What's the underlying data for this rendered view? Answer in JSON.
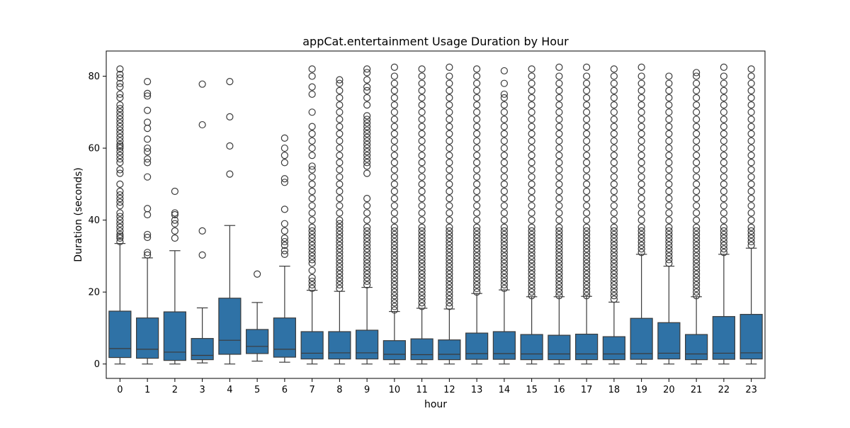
{
  "chart_data": {
    "type": "box",
    "title": "appCat.entertainment Usage Duration by Hour",
    "xlabel": "hour",
    "ylabel": "Duration (seconds)",
    "ylim": [
      -4,
      87
    ],
    "yticks": [
      0,
      20,
      40,
      60,
      80
    ],
    "grid": false,
    "legend": "none",
    "colors": {
      "box_fill": "#2f72a6",
      "line": "#3b3b3b",
      "outlier_edge": "#3b3b3b"
    },
    "categories": [
      "0",
      "1",
      "2",
      "3",
      "4",
      "5",
      "6",
      "7",
      "8",
      "9",
      "10",
      "11",
      "12",
      "13",
      "14",
      "15",
      "16",
      "17",
      "18",
      "19",
      "20",
      "21",
      "22",
      "23"
    ],
    "boxes": [
      {
        "hour": "0",
        "whislo": 0.0,
        "q1": 1.8,
        "med": 4.3,
        "q3": 14.7,
        "whishi": 33.5,
        "fliers": [
          34,
          35,
          35.5,
          36,
          37,
          38,
          39,
          40,
          41,
          42,
          44,
          45,
          46,
          47,
          48,
          50,
          53,
          54,
          56,
          57,
          58,
          59,
          60,
          60.5,
          61,
          62,
          63,
          64,
          65,
          66,
          67,
          68,
          69,
          70,
          71,
          72,
          74,
          75,
          77,
          78,
          79.5,
          80.5,
          82
        ]
      },
      {
        "hour": "1",
        "whislo": 0.0,
        "q1": 1.6,
        "med": 4.1,
        "q3": 12.8,
        "whishi": 29.5,
        "fliers": [
          30.3,
          31,
          35.2,
          36,
          41.5,
          43.2,
          52,
          56,
          57,
          59,
          60,
          62.5,
          65.5,
          67.2,
          70.5,
          74.5,
          75.2,
          78.5
        ]
      },
      {
        "hour": "2",
        "whislo": 0.0,
        "q1": 1.0,
        "med": 3.3,
        "q3": 14.5,
        "whishi": 31.5,
        "fliers": [
          35,
          37,
          39,
          40,
          41.5,
          42,
          48
        ]
      },
      {
        "hour": "3",
        "whislo": 0.3,
        "q1": 1.2,
        "med": 2.4,
        "q3": 7.1,
        "whishi": 15.6,
        "fliers": [
          30.3,
          37,
          66.5,
          77.8
        ]
      },
      {
        "hour": "4",
        "whislo": 0.0,
        "q1": 2.7,
        "med": 6.6,
        "q3": 18.3,
        "whishi": 38.5,
        "fliers": [
          52.8,
          60.6,
          68.7,
          78.5
        ]
      },
      {
        "hour": "5",
        "whislo": 0.8,
        "q1": 2.9,
        "med": 4.9,
        "q3": 9.6,
        "whishi": 17.1,
        "fliers": [
          25
        ]
      },
      {
        "hour": "6",
        "whislo": 0.5,
        "q1": 1.9,
        "med": 4.1,
        "q3": 12.8,
        "whishi": 27.2,
        "fliers": [
          30.5,
          31.5,
          33,
          34,
          35,
          37,
          39,
          43,
          50.5,
          51.5,
          56,
          58,
          60,
          62.8
        ]
      },
      {
        "hour": "7",
        "whislo": 0.0,
        "q1": 1.4,
        "med": 3.0,
        "q3": 9.0,
        "whishi": 20.5,
        "fliers": [
          21,
          22,
          23,
          24,
          26,
          28,
          29,
          30,
          31,
          32,
          33,
          34,
          35,
          36,
          37,
          38,
          40,
          42,
          44,
          46,
          48,
          50,
          52,
          54,
          55,
          58,
          60,
          62,
          64,
          66,
          70,
          75,
          77,
          80,
          82
        ]
      },
      {
        "hour": "8",
        "whislo": 0.0,
        "q1": 1.4,
        "med": 3.1,
        "q3": 9.0,
        "whishi": 20.2,
        "fliers": [
          21,
          22,
          23,
          24,
          25,
          26,
          27,
          28,
          29,
          30,
          31,
          32,
          33,
          34,
          35,
          36,
          37,
          38,
          39,
          40,
          42,
          44,
          46,
          48,
          50,
          52,
          54,
          56,
          58,
          60,
          62,
          64,
          66,
          68,
          70,
          72,
          74,
          76,
          78,
          79
        ]
      },
      {
        "hour": "9",
        "whislo": 0.0,
        "q1": 1.4,
        "med": 3.1,
        "q3": 9.4,
        "whishi": 21.3,
        "fliers": [
          22,
          23,
          24,
          25,
          26,
          27,
          28,
          29,
          30,
          31,
          32,
          33,
          34,
          35,
          36,
          37,
          38,
          40,
          42,
          44,
          46,
          53,
          55,
          56,
          57,
          58,
          59,
          60,
          61,
          62,
          63,
          64,
          65,
          66,
          67,
          68,
          69,
          72,
          74,
          76,
          77,
          79,
          81,
          82
        ]
      },
      {
        "hour": "10",
        "whislo": 0.0,
        "q1": 1.2,
        "med": 2.7,
        "q3": 6.5,
        "whishi": 14.6,
        "fliers": [
          15,
          16,
          17,
          18,
          19,
          20,
          21,
          22,
          23,
          24,
          25,
          26,
          27,
          28,
          29,
          30,
          31,
          32,
          33,
          34,
          35,
          36,
          37,
          38,
          40,
          42,
          44,
          46,
          48,
          50,
          52,
          54,
          56,
          58,
          60,
          62,
          64,
          66,
          68,
          70,
          72,
          74,
          76,
          78,
          80,
          82.5
        ]
      },
      {
        "hour": "11",
        "whislo": 0.0,
        "q1": 1.2,
        "med": 2.6,
        "q3": 7.0,
        "whishi": 15.5,
        "fliers": [
          16,
          17,
          18,
          19,
          20,
          21,
          22,
          23,
          24,
          25,
          26,
          27,
          28,
          29,
          30,
          31,
          32,
          33,
          34,
          35,
          36,
          37,
          38,
          40,
          42,
          44,
          46,
          48,
          50,
          52,
          54,
          56,
          58,
          60,
          62,
          64,
          66,
          68,
          70,
          72,
          74,
          76,
          78,
          80,
          82
        ]
      },
      {
        "hour": "12",
        "whislo": 0.0,
        "q1": 1.2,
        "med": 2.7,
        "q3": 6.7,
        "whishi": 15.3,
        "fliers": [
          16,
          17,
          18,
          19,
          20,
          21,
          22,
          23,
          24,
          25,
          26,
          27,
          28,
          29,
          30,
          31,
          32,
          33,
          34,
          35,
          36,
          37,
          38,
          40,
          42,
          44,
          46,
          48,
          50,
          52,
          54,
          56,
          58,
          60,
          62,
          64,
          66,
          68,
          70,
          72,
          74,
          76,
          78,
          80,
          82.5
        ]
      },
      {
        "hour": "13",
        "whislo": 0.0,
        "q1": 1.3,
        "med": 2.9,
        "q3": 8.6,
        "whishi": 19.6,
        "fliers": [
          20,
          21,
          22,
          23,
          24,
          25,
          26,
          27,
          28,
          29,
          30,
          31,
          32,
          33,
          34,
          35,
          36,
          37,
          38,
          40,
          42,
          44,
          46,
          48,
          50,
          52,
          54,
          56,
          58,
          60,
          62,
          64,
          66,
          68,
          70,
          72,
          74,
          76,
          78,
          80,
          82
        ]
      },
      {
        "hour": "14",
        "whislo": 0.0,
        "q1": 1.3,
        "med": 2.9,
        "q3": 9.0,
        "whishi": 20.6,
        "fliers": [
          21,
          22,
          23,
          24,
          25,
          26,
          27,
          28,
          29,
          30,
          31,
          32,
          33,
          34,
          35,
          36,
          37,
          38,
          40,
          42,
          44,
          46,
          48,
          50,
          52,
          54,
          56,
          58,
          60,
          62,
          64,
          66,
          68,
          70,
          72,
          74,
          75,
          78,
          81.5
        ]
      },
      {
        "hour": "15",
        "whislo": 0.0,
        "q1": 1.2,
        "med": 2.8,
        "q3": 8.2,
        "whishi": 18.7,
        "fliers": [
          19,
          20,
          21,
          22,
          23,
          24,
          25,
          26,
          27,
          28,
          29,
          30,
          31,
          32,
          33,
          34,
          35,
          36,
          37,
          38,
          40,
          42,
          44,
          46,
          48,
          50,
          52,
          54,
          56,
          58,
          60,
          62,
          64,
          66,
          68,
          70,
          72,
          74,
          76,
          78,
          80,
          82
        ]
      },
      {
        "hour": "16",
        "whislo": 0.0,
        "q1": 1.2,
        "med": 2.8,
        "q3": 8.0,
        "whishi": 18.7,
        "fliers": [
          19,
          20,
          21,
          22,
          23,
          24,
          25,
          26,
          27,
          28,
          29,
          30,
          31,
          32,
          33,
          34,
          35,
          36,
          37,
          38,
          40,
          42,
          44,
          46,
          48,
          50,
          52,
          54,
          56,
          58,
          60,
          62,
          64,
          66,
          68,
          70,
          72,
          74,
          76,
          78,
          80,
          82.5
        ]
      },
      {
        "hour": "17",
        "whislo": 0.0,
        "q1": 1.2,
        "med": 2.8,
        "q3": 8.3,
        "whishi": 18.8,
        "fliers": [
          19,
          20,
          21,
          22,
          23,
          24,
          25,
          26,
          27,
          28,
          29,
          30,
          31,
          32,
          33,
          34,
          35,
          36,
          37,
          38,
          40,
          42,
          44,
          46,
          48,
          50,
          52,
          54,
          56,
          58,
          60,
          62,
          64,
          66,
          68,
          70,
          72,
          74,
          76,
          78,
          80,
          82.5
        ]
      },
      {
        "hour": "18",
        "whislo": 0.0,
        "q1": 1.2,
        "med": 2.8,
        "q3": 7.6,
        "whishi": 17.2,
        "fliers": [
          18,
          19,
          20,
          21,
          22,
          23,
          24,
          25,
          26,
          27,
          28,
          29,
          30,
          31,
          32,
          33,
          34,
          35,
          36,
          37,
          38,
          40,
          42,
          44,
          46,
          48,
          50,
          52,
          54,
          56,
          58,
          60,
          62,
          64,
          66,
          68,
          70,
          72,
          74,
          76,
          78,
          80,
          82
        ]
      },
      {
        "hour": "19",
        "whislo": 0.0,
        "q1": 1.3,
        "med": 2.9,
        "q3": 12.7,
        "whishi": 30.5,
        "fliers": [
          31,
          32,
          33,
          34,
          35,
          36,
          37,
          38,
          40,
          42,
          44,
          46,
          48,
          50,
          52,
          54,
          56,
          58,
          60,
          62,
          64,
          66,
          68,
          70,
          72,
          74,
          76,
          78,
          80,
          82.5
        ]
      },
      {
        "hour": "20",
        "whislo": 0.0,
        "q1": 1.4,
        "med": 3.0,
        "q3": 11.5,
        "whishi": 27.2,
        "fliers": [
          28,
          29,
          30,
          31,
          32,
          33,
          34,
          35,
          36,
          37,
          38,
          40,
          42,
          44,
          46,
          48,
          50,
          52,
          54,
          56,
          58,
          60,
          62,
          64,
          66,
          68,
          70,
          72,
          74,
          76,
          78,
          80
        ]
      },
      {
        "hour": "21",
        "whislo": 0.0,
        "q1": 1.2,
        "med": 2.8,
        "q3": 8.2,
        "whishi": 18.7,
        "fliers": [
          19,
          20,
          21,
          22,
          23,
          24,
          25,
          26,
          27,
          28,
          29,
          30,
          31,
          32,
          33,
          34,
          35,
          36,
          37,
          38,
          40,
          42,
          44,
          46,
          48,
          50,
          52,
          54,
          56,
          58,
          60,
          62,
          64,
          66,
          68,
          70,
          72,
          74,
          76,
          78,
          80,
          81
        ]
      },
      {
        "hour": "22",
        "whislo": 0.0,
        "q1": 1.3,
        "med": 3.0,
        "q3": 13.2,
        "whishi": 30.5,
        "fliers": [
          31,
          32,
          33,
          34,
          35,
          36,
          37,
          38,
          40,
          42,
          44,
          46,
          48,
          50,
          52,
          54,
          56,
          58,
          60,
          62,
          64,
          66,
          68,
          70,
          72,
          74,
          76,
          78,
          80,
          82.5
        ]
      },
      {
        "hour": "23",
        "whislo": 0.0,
        "q1": 1.4,
        "med": 3.1,
        "q3": 13.8,
        "whishi": 32.2,
        "fliers": [
          33,
          34,
          35,
          36,
          37,
          38,
          40,
          42,
          44,
          46,
          48,
          50,
          52,
          54,
          56,
          58,
          60,
          62,
          64,
          66,
          68,
          70,
          72,
          74,
          76,
          78,
          80,
          82
        ]
      }
    ]
  }
}
